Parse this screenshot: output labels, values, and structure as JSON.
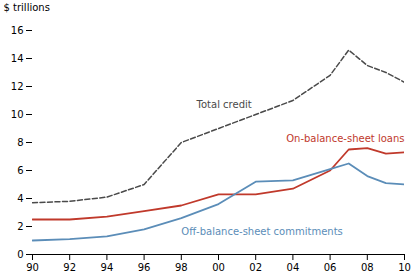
{
  "chart_data": {
    "type": "line",
    "ylabel": "$ trillions",
    "x": [
      90,
      92,
      94,
      96,
      98,
      100,
      102,
      104,
      106,
      107,
      108,
      109,
      110
    ],
    "series": [
      {
        "name": "Total credit",
        "color": "#4a4a4a",
        "line_style": "dashed",
        "values": [
          3.7,
          3.8,
          4.1,
          5.0,
          8.0,
          9.0,
          10.0,
          11.0,
          12.8,
          14.6,
          13.5,
          13.0,
          12.3
        ]
      },
      {
        "name": "On-balance-sheet loans",
        "color": "#c0392b",
        "line_style": "solid",
        "values": [
          2.5,
          2.5,
          2.7,
          3.1,
          3.5,
          4.3,
          4.3,
          4.7,
          6.0,
          7.5,
          7.6,
          7.2,
          7.3
        ]
      },
      {
        "name": "Off-balance-sheet commitments",
        "color": "#5b8db8",
        "line_style": "solid",
        "values": [
          1.0,
          1.1,
          1.3,
          1.8,
          2.6,
          3.6,
          5.2,
          5.3,
          6.1,
          6.5,
          5.6,
          5.1,
          5.0
        ]
      }
    ],
    "xlim": [
      90,
      110
    ],
    "xticks": [
      90,
      92,
      94,
      96,
      98,
      {
        "value": 100,
        "label": "00"
      },
      {
        "value": 102,
        "label": "02"
      },
      {
        "value": 104,
        "label": "04"
      },
      {
        "value": 106,
        "label": "06"
      },
      {
        "value": 108,
        "label": "08"
      },
      {
        "value": 110,
        "label": "10"
      }
    ],
    "ylim": [
      0,
      16
    ],
    "yticks": [
      0,
      2,
      4,
      6,
      8,
      10,
      12,
      14,
      16
    ],
    "grid": false
  }
}
